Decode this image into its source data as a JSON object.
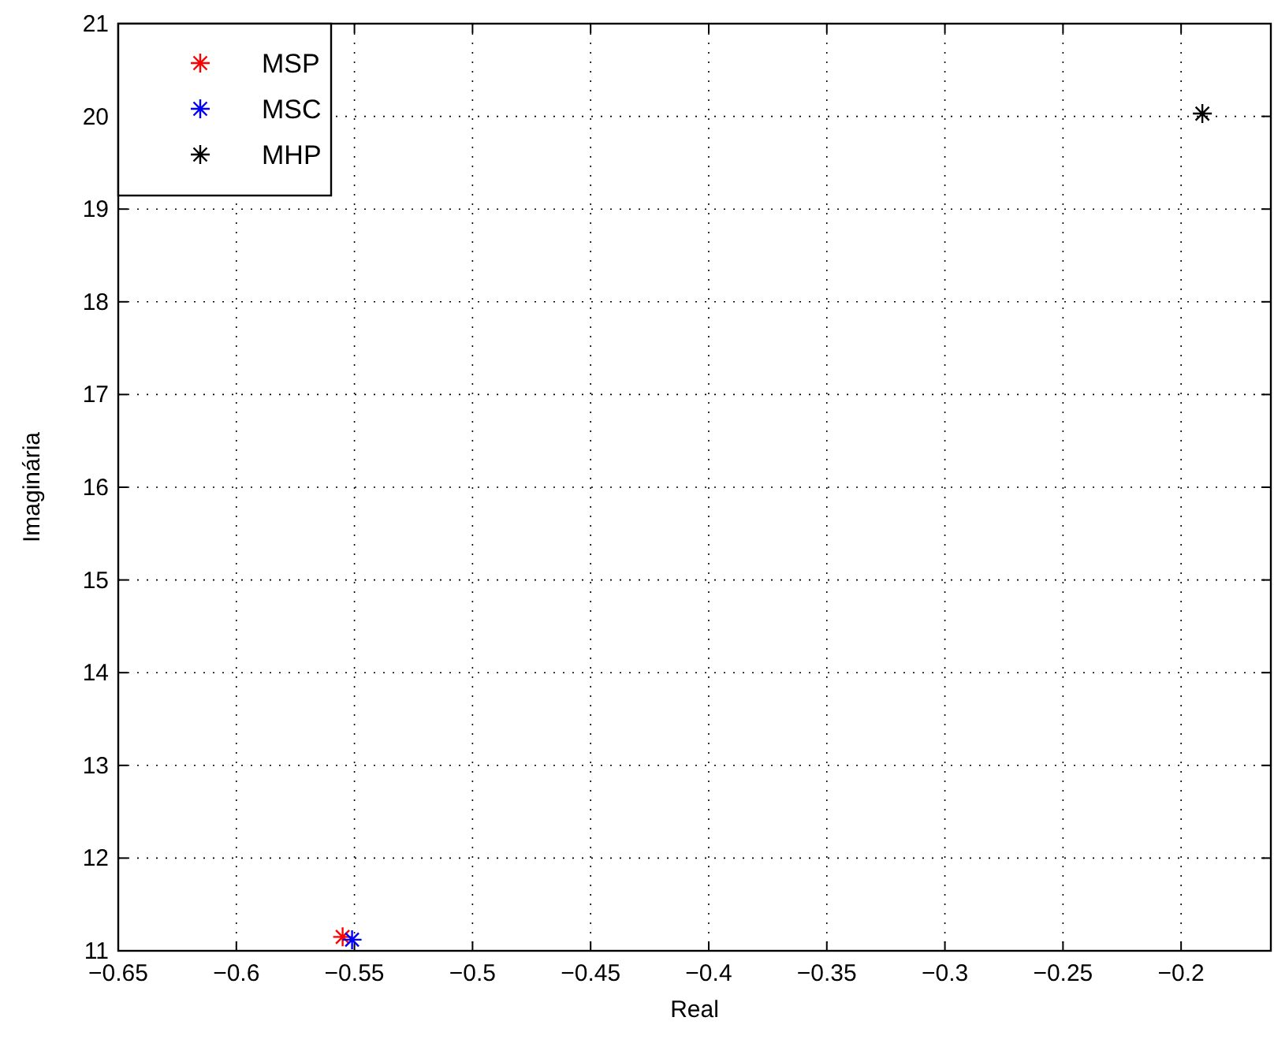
{
  "chart_data": {
    "type": "scatter",
    "xlabel": "Real",
    "ylabel": "Imaginária",
    "xlim": [
      -0.65,
      -0.162
    ],
    "xticks": [
      -0.65,
      -0.6,
      -0.55,
      -0.5,
      -0.45,
      -0.4,
      -0.35,
      -0.3,
      -0.25,
      -0.2
    ],
    "ylim": [
      11,
      21
    ],
    "yticks": [
      11,
      12,
      13,
      14,
      15,
      16,
      17,
      18,
      19,
      20,
      21
    ],
    "grid": true,
    "legend": "top left",
    "marker": "cross",
    "series": [
      {
        "name": "MSP",
        "color": "#ff0000",
        "x": [
          -0.555
        ],
        "values": [
          11.15
        ]
      },
      {
        "name": "MSC",
        "color": "#0000ff",
        "x": [
          -0.551
        ],
        "values": [
          11.12
        ]
      },
      {
        "name": "MHP",
        "color": "#000000",
        "x": [
          -0.191
        ],
        "values": [
          20.03
        ]
      }
    ]
  }
}
